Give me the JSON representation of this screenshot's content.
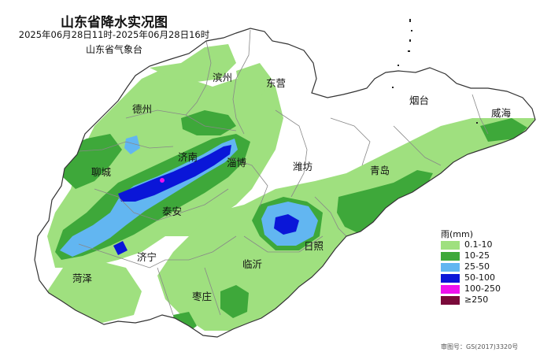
{
  "header": {
    "title": "山东省降水实况图",
    "period": "2025年06月28日11时-2025年06月28日16时",
    "source": "山东省气象台"
  },
  "cities": [
    "滨州",
    "东营",
    "德州",
    "烟台",
    "威海",
    "聊城",
    "济南",
    "淄博",
    "潍坊",
    "青岛",
    "泰安",
    "济宁",
    "临沂",
    "日照",
    "菏泽",
    "枣庄"
  ],
  "legend": {
    "title": "雨(mm)",
    "items": [
      {
        "label": "0.1-10",
        "color": "#9fe07f"
      },
      {
        "label": "10-25",
        "color": "#3ea83a"
      },
      {
        "label": "25-50",
        "color": "#62b6f1"
      },
      {
        "label": "50-100",
        "color": "#0a16d8"
      },
      {
        "label": "100-250",
        "color": "#ee12ee"
      },
      {
        "label": "≥250",
        "color": "#7a0a3a"
      }
    ]
  },
  "approval_number": "审图号：GS(2017)3320号"
}
